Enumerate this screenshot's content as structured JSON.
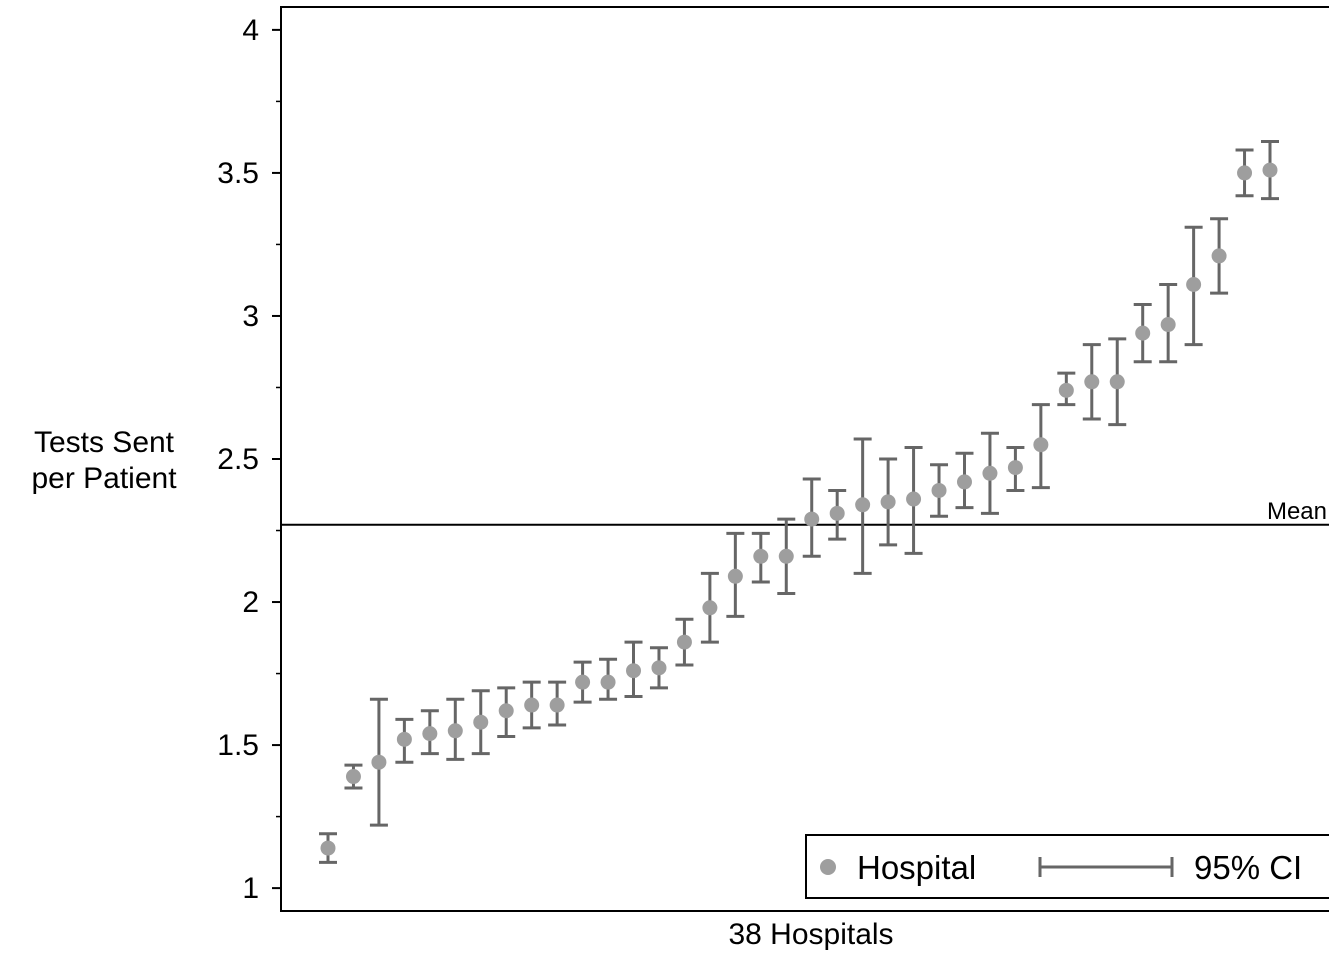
{
  "chart_data": {
    "type": "scatter",
    "xlabel": "38 Hospitals",
    "ylabel_lines": [
      "Tests Sent",
      "per Patient"
    ],
    "ylim": [
      0.92,
      4.08
    ],
    "yticks": [
      {
        "value": 1,
        "label": "1"
      },
      {
        "value": 1.5,
        "label": "1.5"
      },
      {
        "value": 2,
        "label": "2"
      },
      {
        "value": 2.5,
        "label": "2.5"
      },
      {
        "value": 3,
        "label": "3"
      },
      {
        "value": 3.5,
        "label": "3.5"
      },
      {
        "value": 4,
        "label": "4"
      }
    ],
    "yminor": [
      1.25,
      1.75,
      2.25,
      2.75,
      3.25,
      3.75
    ],
    "grid": false,
    "legend_position": "bottom-right",
    "reference_line": {
      "label": "Mean",
      "value": 2.27
    },
    "series": [
      {
        "name": "Hospital",
        "role": "point",
        "color": "#9e9e9e"
      },
      {
        "name": "95% CI",
        "role": "errorbar",
        "color": "#666666"
      }
    ],
    "points": [
      {
        "x": 1,
        "y": 1.14,
        "lo": 1.09,
        "hi": 1.19
      },
      {
        "x": 2,
        "y": 1.39,
        "lo": 1.35,
        "hi": 1.43
      },
      {
        "x": 3,
        "y": 1.44,
        "lo": 1.22,
        "hi": 1.66
      },
      {
        "x": 4,
        "y": 1.52,
        "lo": 1.44,
        "hi": 1.59
      },
      {
        "x": 5,
        "y": 1.54,
        "lo": 1.47,
        "hi": 1.62
      },
      {
        "x": 6,
        "y": 1.55,
        "lo": 1.45,
        "hi": 1.66
      },
      {
        "x": 7,
        "y": 1.58,
        "lo": 1.47,
        "hi": 1.69
      },
      {
        "x": 8,
        "y": 1.62,
        "lo": 1.53,
        "hi": 1.7
      },
      {
        "x": 9,
        "y": 1.64,
        "lo": 1.56,
        "hi": 1.72
      },
      {
        "x": 10,
        "y": 1.64,
        "lo": 1.57,
        "hi": 1.72
      },
      {
        "x": 11,
        "y": 1.72,
        "lo": 1.65,
        "hi": 1.79
      },
      {
        "x": 12,
        "y": 1.72,
        "lo": 1.66,
        "hi": 1.8
      },
      {
        "x": 13,
        "y": 1.76,
        "lo": 1.67,
        "hi": 1.86
      },
      {
        "x": 14,
        "y": 1.77,
        "lo": 1.7,
        "hi": 1.84
      },
      {
        "x": 15,
        "y": 1.86,
        "lo": 1.78,
        "hi": 1.94
      },
      {
        "x": 16,
        "y": 1.98,
        "lo": 1.86,
        "hi": 2.1
      },
      {
        "x": 17,
        "y": 2.09,
        "lo": 1.95,
        "hi": 2.24
      },
      {
        "x": 18,
        "y": 2.16,
        "lo": 2.07,
        "hi": 2.24
      },
      {
        "x": 19,
        "y": 2.16,
        "lo": 2.03,
        "hi": 2.29
      },
      {
        "x": 20,
        "y": 2.29,
        "lo": 2.16,
        "hi": 2.43
      },
      {
        "x": 21,
        "y": 2.31,
        "lo": 2.22,
        "hi": 2.39
      },
      {
        "x": 22,
        "y": 2.34,
        "lo": 2.1,
        "hi": 2.57
      },
      {
        "x": 23,
        "y": 2.35,
        "lo": 2.2,
        "hi": 2.5
      },
      {
        "x": 24,
        "y": 2.36,
        "lo": 2.17,
        "hi": 2.54
      },
      {
        "x": 25,
        "y": 2.39,
        "lo": 2.3,
        "hi": 2.48
      },
      {
        "x": 26,
        "y": 2.42,
        "lo": 2.33,
        "hi": 2.52
      },
      {
        "x": 27,
        "y": 2.45,
        "lo": 2.31,
        "hi": 2.59
      },
      {
        "x": 28,
        "y": 2.47,
        "lo": 2.39,
        "hi": 2.54
      },
      {
        "x": 29,
        "y": 2.55,
        "lo": 2.4,
        "hi": 2.69
      },
      {
        "x": 30,
        "y": 2.74,
        "lo": 2.69,
        "hi": 2.8
      },
      {
        "x": 31,
        "y": 2.77,
        "lo": 2.64,
        "hi": 2.9
      },
      {
        "x": 32,
        "y": 2.77,
        "lo": 2.62,
        "hi": 2.92
      },
      {
        "x": 33,
        "y": 2.94,
        "lo": 2.84,
        "hi": 3.04
      },
      {
        "x": 34,
        "y": 2.97,
        "lo": 2.84,
        "hi": 3.11
      },
      {
        "x": 35,
        "y": 3.11,
        "lo": 2.9,
        "hi": 3.31
      },
      {
        "x": 36,
        "y": 3.21,
        "lo": 3.08,
        "hi": 3.34
      },
      {
        "x": 37,
        "y": 3.5,
        "lo": 3.42,
        "hi": 3.58
      },
      {
        "x": 38,
        "y": 3.51,
        "lo": 3.41,
        "hi": 3.61
      }
    ]
  }
}
